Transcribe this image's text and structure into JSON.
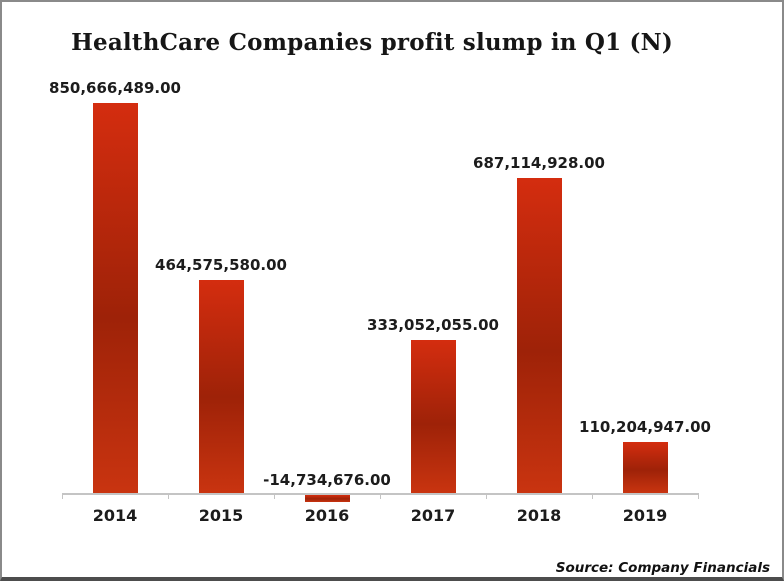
{
  "title": "HealthCare Companies profit slump in Q1 (N)",
  "source_note": "Source: Company Financials",
  "chart_data": {
    "type": "bar",
    "title": "HealthCare Companies profit slump in Q1 (N)",
    "categories": [
      "2014",
      "2015",
      "2016",
      "2017",
      "2018",
      "2019"
    ],
    "values": [
      850666489,
      464575580,
      -14734676,
      333052055,
      687114928,
      110204947
    ],
    "value_labels": [
      "850,666,489.00",
      "464,575,580.00",
      "-14,734,676.00",
      "333,052,055.00",
      "687,114,928.00",
      "110,204,947.00"
    ],
    "xlabel": "",
    "ylabel": "",
    "ylim": [
      -50000000,
      900000000
    ],
    "grid": false,
    "legend": false,
    "annotations": [
      "Source: Company Financials"
    ],
    "colors": {
      "bar_top": "#d42d0f",
      "bar_mid": "#9e2208",
      "bar_bottom": "#c93410",
      "axis": "#c4c4c4",
      "text": "#1c1c1c"
    }
  }
}
